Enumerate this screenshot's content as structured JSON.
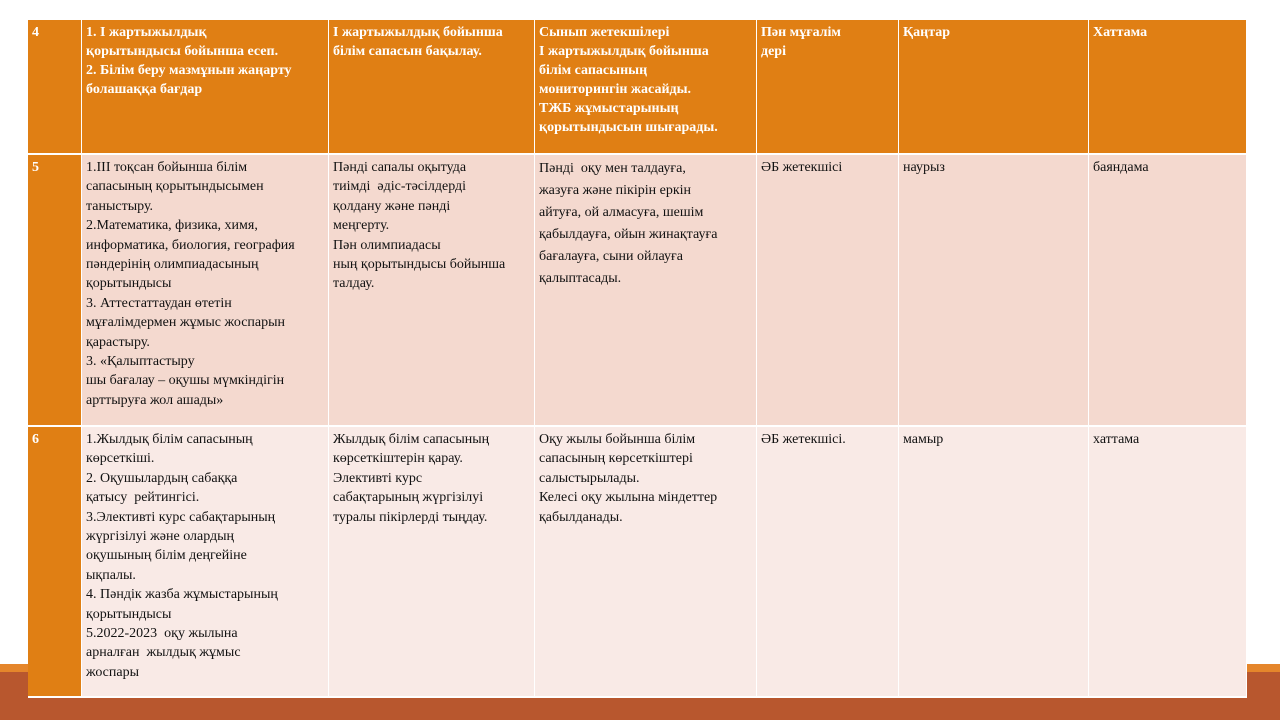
{
  "table": {
    "rows": [
      [
        [
          "4"
        ],
        [
          "1. І жартыжылдық",
          "қорытындысы бойынша есеп.",
          "2. Білім беру мазмұнын жаңарту",
          "болашаққа бағдар"
        ],
        [
          "І жартыжылдық бойынша",
          "білім сапасын бақылау."
        ],
        [
          "Сынып жетекшілері",
          "І жартыжылдық бойынша",
          "білім сапасының",
          "мониторингін жасайды.",
          "ТЖБ жұмыстарының",
          "қорытындысын шығарады."
        ],
        [
          "Пән мұғалім",
          "дері"
        ],
        [
          "Қаңтар"
        ],
        [
          "Хаттама"
        ]
      ],
      [
        [
          "5"
        ],
        [
          "1.ІІІ тоқсан бойынша білім",
          "сапасының қорытындысымен",
          "таныстыру.",
          "2.Математика, физика, химя,",
          "информатика, биология, география",
          "пәндерінің олимпиадасының",
          "қорытындысы",
          "3. Аттестаттаудан өтетін",
          "мұғалімдермен жұмыс жоспарын",
          "қарастыру.",
          "3. «Қалыптастыру",
          "шы бағалау – оқушы мүмкіндігін",
          "арттыруға жол ашады»"
        ],
        [
          "Пәнді сапалы оқытуда",
          "тиімді  әдіс-тәсілдерді",
          "қолдану және пәнді",
          "меңгерту.",
          "Пән олимпиадасы",
          "ның қорытындысы бойынша",
          "талдау."
        ],
        [
          "Пәнді  оқу мен талдауға,",
          "жазуға және пікірін еркін",
          "айтуға, ой алмасуға, шешім",
          "қабылдауға, ойын жинақтауға",
          "бағалауға, сыни ойлауға",
          "қалыптасады."
        ],
        [
          "ӘБ жетекшісі"
        ],
        [
          "наурыз"
        ],
        [
          "баяндама"
        ]
      ],
      [
        [
          "6"
        ],
        [
          "1.Жылдық білім сапасының",
          "көрсеткіші.",
          "2. Оқушылардың сабаққа",
          "қатысу  рейтингісі.",
          "3.Элективті курс сабақтарының",
          "жүргізілуі және олардың",
          "оқушының білім деңгейіне",
          "ықпалы.",
          "4. Пәндік жазба жұмыстарының",
          "қорытындысы",
          "5.2022-2023  оқу жылына",
          "арналған  жылдық жұмыс",
          "жоспары"
        ],
        [
          "Жылдық білім сапасының",
          "көрсеткіштерін қарау.",
          "Элективті курс",
          "сабақтарының жүргізілуі",
          "туралы пікірлерді тыңдау."
        ],
        [
          "Оқу жылы бойынша білім",
          "сапасының көрсеткіштері",
          "салыстырылады.",
          "Келесі оқу жылына міндеттер",
          "қабылданады."
        ],
        [
          "ӘБ жетекшісі."
        ],
        [
          "мамыр"
        ],
        [
          "хаттама"
        ]
      ]
    ]
  }
}
